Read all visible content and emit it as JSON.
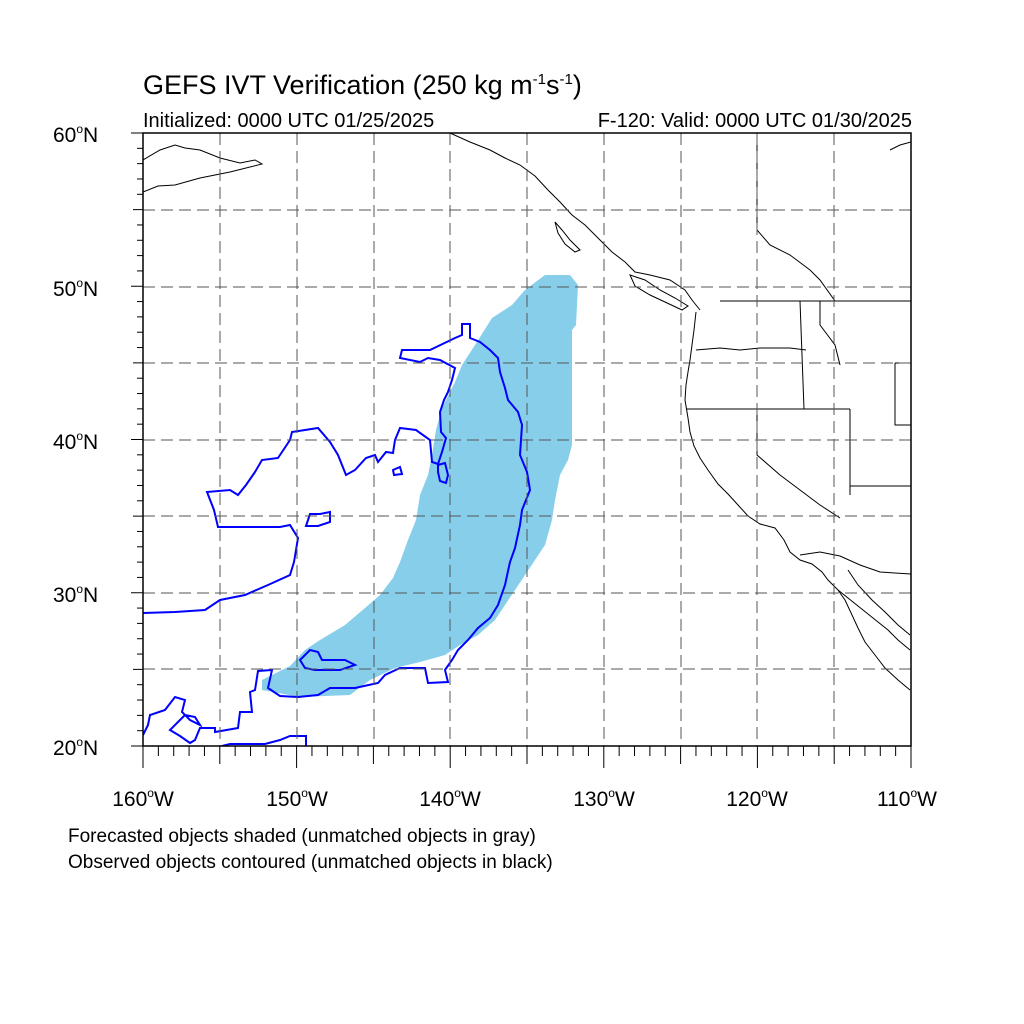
{
  "title": {
    "main": "GEFS IVT Verification (250 kg m",
    "exp1": "-1",
    "mid": "s",
    "exp2": "-1",
    "end": ")"
  },
  "subtitle": {
    "left": "Initialized: 0000 UTC 01/25/2025",
    "right": "F-120: Valid: 0000 UTC 01/30/2025"
  },
  "axes": {
    "lat_labels": [
      "20",
      "30",
      "40",
      "50",
      "60"
    ],
    "lat_suffix": "N",
    "lon_labels": [
      "160",
      "150",
      "140",
      "130",
      "120",
      "110"
    ],
    "lon_suffix": "W",
    "lat_range": [
      20,
      60
    ],
    "lon_range": [
      -160,
      -110
    ],
    "grid": "dashed every 5 degrees"
  },
  "legend": {
    "line1": "Forecasted objects shaded (unmatched objects in gray)",
    "line2": "Observed objects contoured (unmatched objects in black)"
  },
  "colors": {
    "forecast_fill": "#87ceeb",
    "observed_contour": "#0000ff",
    "coastline": "#000000",
    "grid": "#555555"
  }
}
